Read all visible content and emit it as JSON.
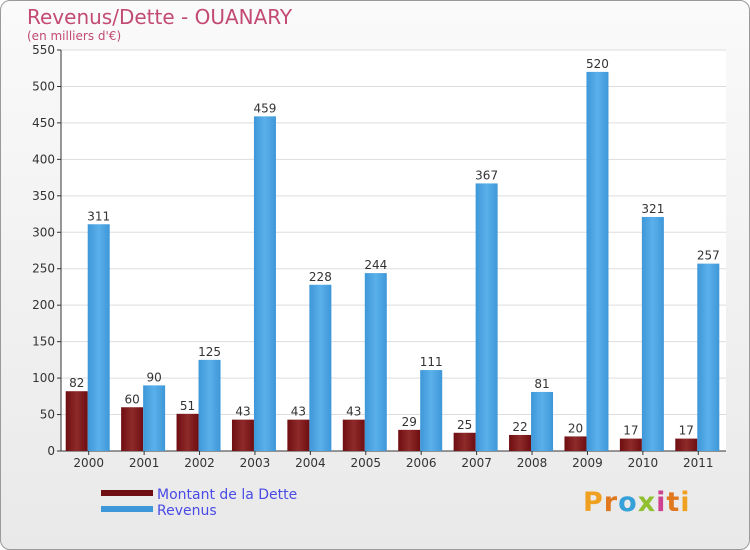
{
  "title": "Revenus/Dette - OUANARY",
  "subtitle": "(en milliers d'€)",
  "colors": {
    "debt": "#6e0e12",
    "debt_light": "#8e2a2a",
    "revenue": "#3e97d8",
    "revenue_light": "#5ab0ea",
    "title": "#c24a74",
    "legend_text": "#4a4ae6"
  },
  "legend": {
    "debt_label": "Montant de la Dette",
    "revenue_label": "Revenus"
  },
  "logo": {
    "letters": [
      "P",
      "r",
      "o",
      "x",
      "i",
      "t",
      "i"
    ],
    "colors": [
      "#f0a020",
      "#e07820",
      "#36a0d8",
      "#90c030",
      "#d04090",
      "#e07820",
      "#f0a020"
    ]
  },
  "chart_data": {
    "type": "bar",
    "title": "Revenus/Dette - OUANARY",
    "ylabel": "(en milliers d'€)",
    "xlabel": "",
    "categories": [
      "2000",
      "2001",
      "2002",
      "2003",
      "2004",
      "2005",
      "2006",
      "2007",
      "2008",
      "2009",
      "2010",
      "2011"
    ],
    "series": [
      {
        "name": "Montant de la Dette",
        "values": [
          82,
          60,
          51,
          43,
          43,
          43,
          29,
          25,
          22,
          20,
          17,
          17
        ]
      },
      {
        "name": "Revenus",
        "values": [
          311,
          90,
          125,
          459,
          228,
          244,
          111,
          367,
          81,
          520,
          321,
          257
        ]
      }
    ],
    "ylim": [
      0,
      550
    ],
    "yticks": [
      0,
      50,
      100,
      150,
      200,
      250,
      300,
      350,
      400,
      450,
      500,
      550
    ],
    "grid": true,
    "legend_position": "bottom-left"
  }
}
